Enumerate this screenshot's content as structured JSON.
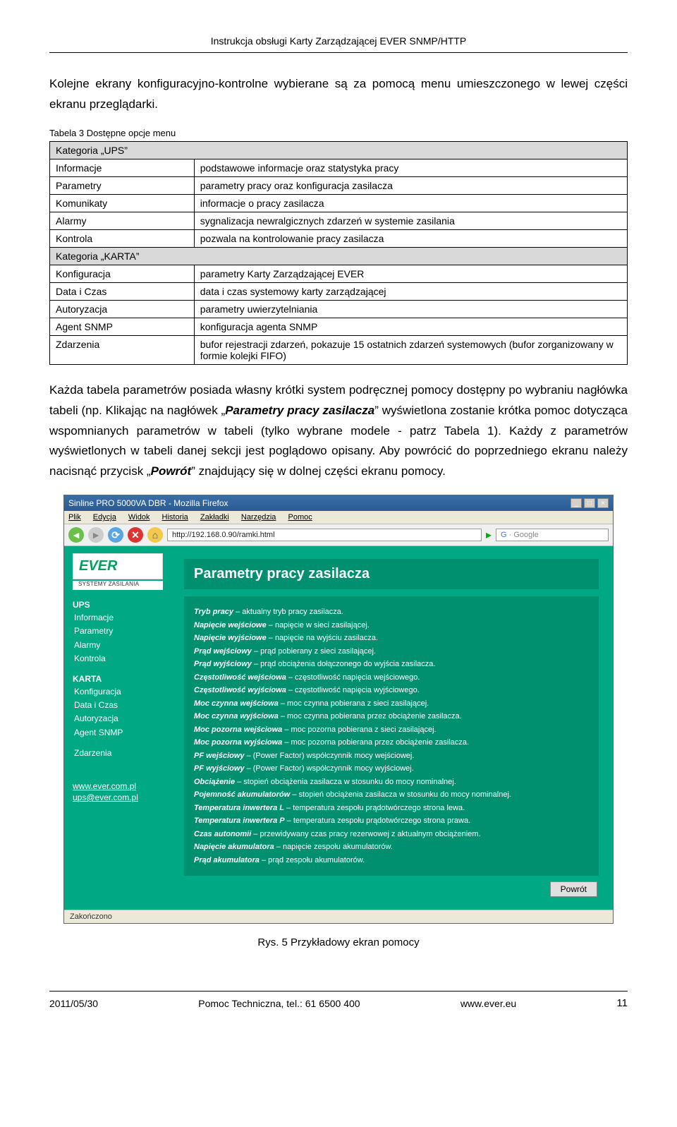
{
  "header": "Instrukcja obsługi Karty Zarządzającej EVER SNMP/HTTP",
  "intro": "Kolejne ekrany konfiguracyjno-kontrolne wybierane są za pomocą menu umieszczonego w lewej części ekranu przeglądarki.",
  "table_caption": "Tabela 3 Dostępne opcje menu",
  "cat_ups": "Kategoria „UPS”",
  "cat_karta": "Kategoria „KARTA”",
  "rows_ups": [
    {
      "l": "Informacje",
      "r": "podstawowe informacje oraz statystyka pracy"
    },
    {
      "l": "Parametry",
      "r": "parametry pracy oraz konfiguracja zasilacza"
    },
    {
      "l": "Komunikaty",
      "r": "informacje o pracy zasilacza"
    },
    {
      "l": "Alarmy",
      "r": "sygnalizacja newralgicznych zdarzeń w systemie zasilania"
    },
    {
      "l": "Kontrola",
      "r": "pozwala na kontrolowanie pracy zasilacza"
    }
  ],
  "rows_karta": [
    {
      "l": "Konfiguracja",
      "r": "parametry Karty Zarządzającej EVER"
    },
    {
      "l": "Data i Czas",
      "r": "data i czas systemowy karty zarządzającej"
    },
    {
      "l": "Autoryzacja",
      "r": "parametry uwierzytelniania"
    },
    {
      "l": "Agent SNMP",
      "r": "konfiguracja agenta SNMP"
    },
    {
      "l": "Zdarzenia",
      "r": "bufor rejestracji zdarzeń, pokazuje 15 ostatnich zdarzeń systemowych (bufor zorganizowany w formie kolejki FIFO)"
    }
  ],
  "para2_a": "Każda tabela parametrów posiada własny krótki system podręcznej pomocy dostępny po wybraniu nagłówka tabeli (np. Klikając na nagłówek „",
  "para2_b": "Parametry pracy zasilacza",
  "para2_c": "” wyświetlona zostanie krótka pomoc dotycząca wspomnianych parametrów w tabeli (tylko wybrane modele - patrz Tabela 1). Każdy z parametrów wyświetlonych w tabeli danej sekcji jest poglądowo opisany. Aby powrócić do poprzedniego ekranu należy nacisnąć przycisk „",
  "para2_d": "Powrót",
  "para2_e": "” znajdujący się w dolnej części ekranu pomocy.",
  "shot": {
    "title": "Sinline PRO 5000VA DBR - Mozilla Firefox",
    "menus": [
      "Plik",
      "Edycja",
      "Widok",
      "Historia",
      "Zakładki",
      "Narzędzia",
      "Pomoc"
    ],
    "url": "http://192.168.0.90/ramki.html",
    "search_ph": "Google",
    "logo": "EVER",
    "logo_sub": "SYSTEMY ZASILANIA",
    "side_h1": "UPS",
    "side_ups": [
      "Informacje",
      "Parametry",
      "Alarmy",
      "Kontrola"
    ],
    "side_h2": "KARTA",
    "side_karta": [
      "Konfiguracja",
      "Data i Czas",
      "Autoryzacja",
      "Agent SNMP"
    ],
    "side_zd": "Zdarzenia",
    "side_links": [
      "www.ever.com.pl",
      "ups@ever.com.pl"
    ],
    "main_title": "Parametry pracy zasilacza",
    "help": [
      {
        "b": "Tryb pracy",
        "d": " – aktualny tryb pracy zasilacza."
      },
      {
        "b": "Napięcie wejściowe",
        "d": " – napięcie w sieci zasilającej."
      },
      {
        "b": "Napięcie wyjściowe",
        "d": " – napięcie na wyjściu zasilacza."
      },
      {
        "b": "Prąd wejściowy",
        "d": " – prąd pobierany z sieci zasilającej."
      },
      {
        "b": "Prąd wyjściowy",
        "d": " – prąd obciążenia dołączonego do wyjścia zasilacza."
      },
      {
        "b": "Częstotliwość wejściowa",
        "d": " – częstotliwość napięcia wejściowego."
      },
      {
        "b": "Częstotliwość wyjściowa",
        "d": " – częstotliwość napięcia wyjściowego."
      },
      {
        "b": "Moc czynna wejściowa",
        "d": " – moc czynna pobierana z sieci zasilającej."
      },
      {
        "b": "Moc czynna wyjściowa",
        "d": " – moc czynna pobierana przez obciążenie zasilacza."
      },
      {
        "b": "Moc pozorna wejściowa",
        "d": " – moc pozorna pobierana z sieci zasilającej."
      },
      {
        "b": "Moc pozorna wyjściowa",
        "d": " – moc pozorna pobierana przez obciążenie zasilacza."
      },
      {
        "b": "PF wejściowy",
        "d": " – (Power Factor) współczynnik mocy wejściowej."
      },
      {
        "b": "PF wyjściowy",
        "d": " – (Power Factor) współczynnik mocy wyjściowej."
      },
      {
        "b": "Obciążenie",
        "d": " – stopień obciążenia zasilacza w stosunku do mocy nominalnej."
      },
      {
        "b": "Pojemność akumulatorów",
        "d": " – stopień obciążenia zasilacza w stosunku do mocy nominalnej."
      },
      {
        "b": "Temperatura inwertera L",
        "d": " – temperatura zespołu prądotwórczego strona lewa."
      },
      {
        "b": "Temperatura inwertera P",
        "d": " – temperatura zespołu prądotwórczego strona prawa."
      },
      {
        "b": "Czas autonomii",
        "d": " – przewidywany czas pracy rezerwowej z aktualnym obciążeniem."
      },
      {
        "b": "Napięcie akumulatora",
        "d": " – napięcie zespołu akumulatorów."
      },
      {
        "b": "Prąd akumulatora",
        "d": " – prąd zespołu akumulatorów."
      }
    ],
    "back": "Powrót",
    "status": "Zakończono"
  },
  "figcap": "Rys. 5 Przykładowy ekran pomocy",
  "footer": {
    "date": "2011/05/30",
    "center": "Pomoc Techniczna, tel.: 61 6500 400",
    "site": "www.ever.eu",
    "page": "11"
  }
}
